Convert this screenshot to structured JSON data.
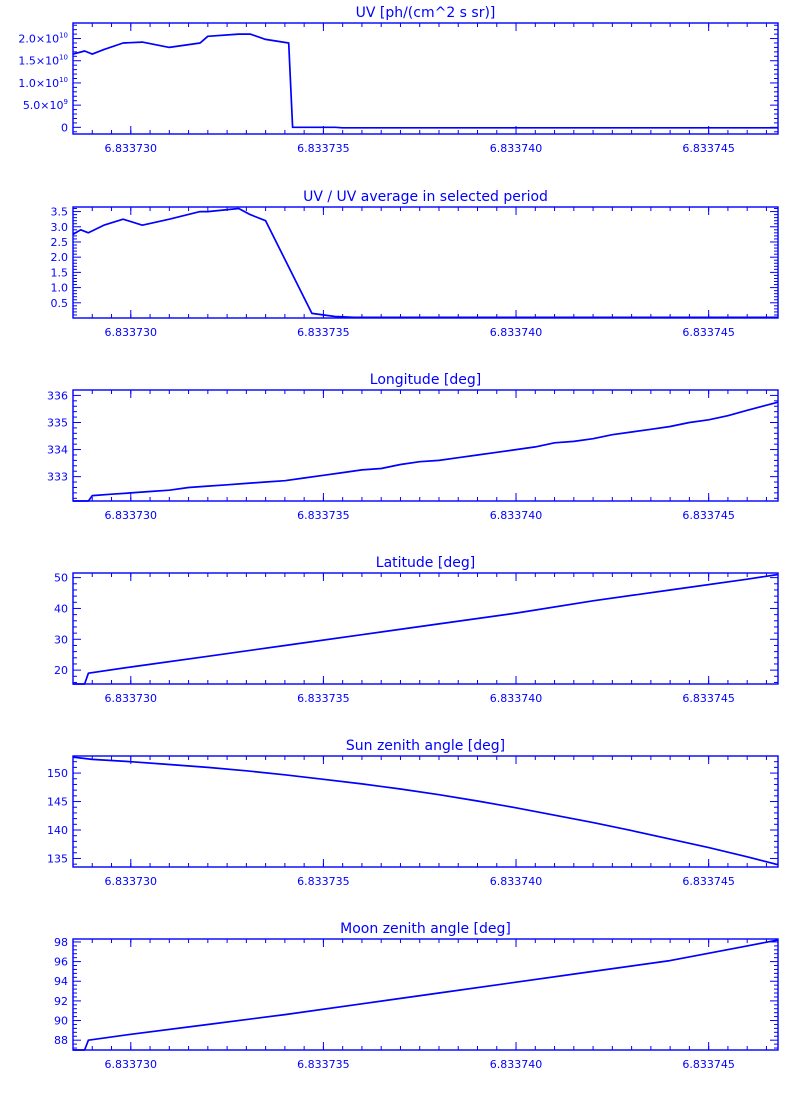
{
  "chart_data": [
    {
      "type": "line",
      "title": "UV [ph/(cm^2 s sr)]",
      "xlim": [
        6.8337285,
        6.8337468
      ],
      "ylim": [
        -1500000000.0,
        23500000000.0
      ],
      "xticks": [
        6.83373,
        6.833735,
        6.83374,
        6.833745
      ],
      "xtick_labels": [
        "6.833730",
        "6.833735",
        "6.833740",
        "6.833745"
      ],
      "yticks": [
        0,
        5000000000.0,
        10000000000.0,
        15000000000.0,
        20000000000.0
      ],
      "ytick_labels": [
        {
          "mantissa": "0",
          "exponent": ""
        },
        {
          "mantissa": "5.0×10",
          "exponent": "9"
        },
        {
          "mantissa": "1.0×10",
          "exponent": "10"
        },
        {
          "mantissa": "1.5×10",
          "exponent": "10"
        },
        {
          "mantissa": "2.0×10",
          "exponent": "10"
        }
      ],
      "x": [
        6.8337285,
        6.8337288,
        6.833729,
        6.8337293,
        6.8337298,
        6.8337303,
        6.833731,
        6.8337318,
        6.833732,
        6.8337328,
        6.8337331,
        6.8337335,
        6.8337341,
        6.8337342,
        6.8337353,
        6.8337355,
        6.8337468
      ],
      "values": [
        16500000000.0,
        17200000000.0,
        16500000000.0,
        17500000000.0,
        19000000000.0,
        19200000000.0,
        18000000000.0,
        19000000000.0,
        20500000000.0,
        21000000000.0,
        21000000000.0,
        19800000000.0,
        19000000000.0,
        0.0,
        0.0,
        -100000000.0,
        -100000000.0
      ]
    },
    {
      "type": "line",
      "title": "UV / UV average in selected period",
      "xlim": [
        6.8337285,
        6.8337468
      ],
      "ylim": [
        0.0,
        3.65
      ],
      "xticks": [
        6.83373,
        6.833735,
        6.83374,
        6.833745
      ],
      "xtick_labels": [
        "6.833730",
        "6.833735",
        "6.833740",
        "6.833745"
      ],
      "yticks": [
        0.5,
        1.0,
        1.5,
        2.0,
        2.5,
        3.0,
        3.5
      ],
      "ytick_labels": [
        "0.5",
        "1.0",
        "1.5",
        "2.0",
        "2.5",
        "3.0",
        "3.5"
      ],
      "x": [
        6.8337285,
        6.8337287,
        6.8337289,
        6.8337293,
        6.8337298,
        6.8337303,
        6.833731,
        6.8337318,
        6.833732,
        6.8337328,
        6.8337331,
        6.8337335,
        6.8337347,
        6.8337353,
        6.8337358,
        6.8337468
      ],
      "values": [
        2.75,
        2.9,
        2.8,
        3.05,
        3.25,
        3.05,
        3.25,
        3.5,
        3.5,
        3.6,
        3.4,
        3.2,
        0.15,
        0.05,
        0.02,
        0.02
      ]
    },
    {
      "type": "line",
      "title": "Longitude [deg]",
      "xlim": [
        6.8337285,
        6.8337468
      ],
      "ylim": [
        332.1,
        336.2
      ],
      "xticks": [
        6.83373,
        6.833735,
        6.83374,
        6.833745
      ],
      "xtick_labels": [
        "6.833730",
        "6.833735",
        "6.833740",
        "6.833745"
      ],
      "yticks": [
        333,
        334,
        335,
        336
      ],
      "ytick_labels": [
        "333",
        "334",
        "335",
        "336"
      ],
      "x": [
        6.8337285,
        6.8337287,
        6.8337289,
        6.833729,
        6.8337295,
        6.83373,
        6.8337305,
        6.833731,
        6.8337315,
        6.833732,
        6.8337325,
        6.833733,
        6.8337335,
        6.833734,
        6.8337345,
        6.833735,
        6.8337355,
        6.833736,
        6.8337365,
        6.833737,
        6.8337375,
        6.833738,
        6.8337385,
        6.833739,
        6.8337395,
        6.83374,
        6.8337405,
        6.833741,
        6.8337415,
        6.833742,
        6.8337425,
        6.833743,
        6.8337435,
        6.833744,
        6.8337445,
        6.833745,
        6.8337455,
        6.833746,
        6.8337468
      ],
      "values": [
        332.1,
        332.1,
        332.1,
        332.3,
        332.35,
        332.4,
        332.45,
        332.5,
        332.6,
        332.65,
        332.7,
        332.75,
        332.8,
        332.85,
        332.95,
        333.05,
        333.15,
        333.25,
        333.3,
        333.45,
        333.55,
        333.6,
        333.7,
        333.8,
        333.9,
        334.0,
        334.1,
        334.25,
        334.3,
        334.4,
        334.55,
        334.65,
        334.75,
        334.85,
        335.0,
        335.1,
        335.25,
        335.45,
        335.75
      ]
    },
    {
      "type": "line",
      "title": "Latitude [deg]",
      "xlim": [
        6.8337285,
        6.8337468
      ],
      "ylim": [
        15.5,
        51.5
      ],
      "xticks": [
        6.83373,
        6.833735,
        6.83374,
        6.833745
      ],
      "xtick_labels": [
        "6.833730",
        "6.833735",
        "6.833740",
        "6.833745"
      ],
      "yticks": [
        20,
        30,
        40,
        50
      ],
      "ytick_labels": [
        "20",
        "30",
        "40",
        "50"
      ],
      "x": [
        6.8337285,
        6.8337288,
        6.8337289,
        6.83373,
        6.833732,
        6.833734,
        6.833736,
        6.833738,
        6.83374,
        6.833742,
        6.833744,
        6.833746,
        6.8337468
      ],
      "values": [
        15.5,
        15.5,
        19.0,
        21.0,
        24.5,
        28.0,
        31.5,
        35.0,
        38.5,
        42.5,
        46.0,
        49.5,
        51.0
      ]
    },
    {
      "type": "line",
      "title": "Sun zenith angle [deg]",
      "xlim": [
        6.8337285,
        6.8337468
      ],
      "ylim": [
        133.5,
        153.0
      ],
      "xticks": [
        6.83373,
        6.833735,
        6.83374,
        6.833745
      ],
      "xtick_labels": [
        "6.833730",
        "6.833735",
        "6.833740",
        "6.833745"
      ],
      "yticks": [
        135,
        140,
        145,
        150
      ],
      "ytick_labels": [
        "135",
        "140",
        "145",
        "150"
      ],
      "x": [
        6.8337285,
        6.833729,
        6.83373,
        6.833731,
        6.833732,
        6.833733,
        6.833734,
        6.833735,
        6.833736,
        6.833737,
        6.833738,
        6.833739,
        6.83374,
        6.833741,
        6.833742,
        6.833743,
        6.833744,
        6.833745,
        6.833746,
        6.8337468
      ],
      "values": [
        152.8,
        152.4,
        152.0,
        151.5,
        151.0,
        150.4,
        149.7,
        148.9,
        148.1,
        147.2,
        146.2,
        145.1,
        143.9,
        142.6,
        141.3,
        139.9,
        138.4,
        136.9,
        135.3,
        133.9
      ]
    },
    {
      "type": "line",
      "title": "Moon zenith angle [deg]",
      "xlim": [
        6.8337285,
        6.8337468
      ],
      "ylim": [
        87.0,
        98.3
      ],
      "xticks": [
        6.83373,
        6.833735,
        6.83374,
        6.833745
      ],
      "xtick_labels": [
        "6.833730",
        "6.833735",
        "6.833740",
        "6.833745"
      ],
      "yticks": [
        88,
        90,
        92,
        94,
        96,
        98
      ],
      "ytick_labels": [
        "88",
        "90",
        "92",
        "94",
        "96",
        "98"
      ],
      "x": [
        6.8337285,
        6.8337288,
        6.8337289,
        6.83373,
        6.833732,
        6.833734,
        6.833736,
        6.833738,
        6.83374,
        6.833742,
        6.833744,
        6.833746,
        6.8337468
      ],
      "values": [
        87.0,
        87.0,
        88.0,
        88.6,
        89.6,
        90.6,
        91.7,
        92.8,
        93.9,
        95.0,
        96.1,
        97.6,
        98.2
      ]
    }
  ]
}
